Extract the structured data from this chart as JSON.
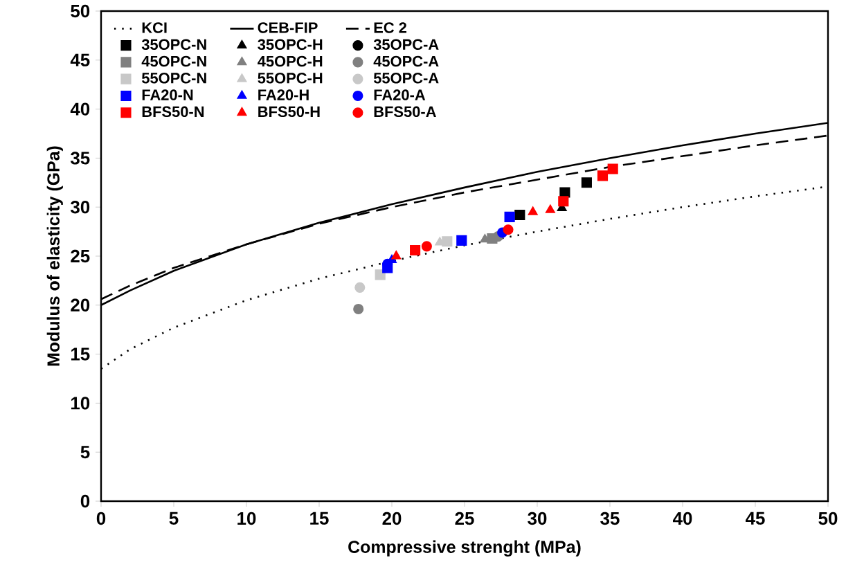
{
  "chart_data": {
    "type": "scatter",
    "xlabel": "Compressive strenght (MPa)",
    "ylabel": "Modulus of elasticity (GPa)",
    "xlim": [
      0,
      50
    ],
    "ylim": [
      0,
      50
    ],
    "xticks": [
      0,
      5,
      10,
      15,
      20,
      25,
      30,
      35,
      40,
      45,
      50
    ],
    "yticks": [
      0,
      5,
      10,
      15,
      20,
      25,
      30,
      35,
      40,
      45,
      50
    ],
    "legend": "top left",
    "series": [
      {
        "name": "KCI",
        "type": "line",
        "line_style": "dotted",
        "color": "#000000",
        "x": [
          0,
          2,
          5,
          10,
          15,
          20,
          25,
          30,
          35,
          40,
          45,
          50
        ],
        "values": [
          13.5,
          15.5,
          17.7,
          20.5,
          22.7,
          24.5,
          26.1,
          27.5,
          28.8,
          30.0,
          31.1,
          32.1
        ]
      },
      {
        "name": "CEB-FIP",
        "type": "line",
        "line_style": "solid",
        "color": "#000000",
        "x": [
          0,
          2,
          5,
          10,
          15,
          20,
          25,
          30,
          35,
          40,
          45,
          50
        ],
        "values": [
          20.0,
          21.5,
          23.5,
          26.2,
          28.4,
          30.3,
          32.0,
          33.6,
          35.0,
          36.3,
          37.5,
          38.6
        ]
      },
      {
        "name": "EC 2",
        "type": "line",
        "line_style": "dashed",
        "color": "#000000",
        "x": [
          0,
          2,
          5,
          10,
          15,
          20,
          25,
          30,
          35,
          40,
          45,
          50
        ],
        "values": [
          20.6,
          22.0,
          23.8,
          26.2,
          28.3,
          30.0,
          31.5,
          32.8,
          34.1,
          35.2,
          36.3,
          37.3
        ]
      },
      {
        "name": "35OPC-N",
        "type": "scatter",
        "marker": "square",
        "color": "#000000",
        "x": [
          28.8,
          31.9,
          33.4
        ],
        "values": [
          29.2,
          31.5,
          32.5
        ]
      },
      {
        "name": "35OPC-H",
        "type": "scatter",
        "marker": "triangle",
        "color": "#000000",
        "x": [
          31.7
        ],
        "values": [
          29.9
        ]
      },
      {
        "name": "35OPC-A",
        "type": "scatter",
        "marker": "circle",
        "color": "#000000"
      },
      {
        "name": "45OPC-N",
        "type": "scatter",
        "marker": "square",
        "color": "#808080",
        "x": [
          26.9
        ],
        "values": [
          26.8
        ]
      },
      {
        "name": "45OPC-H",
        "type": "scatter",
        "marker": "triangle",
        "color": "#808080",
        "x": [
          26.4
        ],
        "values": [
          26.7
        ]
      },
      {
        "name": "45OPC-A",
        "type": "scatter",
        "marker": "circle",
        "color": "#808080",
        "x": [
          17.7,
          27.3
        ],
        "values": [
          19.6,
          27.0
        ]
      },
      {
        "name": "55OPC-N",
        "type": "scatter",
        "marker": "square",
        "color": "#c8c8c8",
        "x": [
          19.2,
          23.8
        ],
        "values": [
          23.1,
          26.5
        ]
      },
      {
        "name": "55OPC-H",
        "type": "scatter",
        "marker": "triangle",
        "color": "#c8c8c8",
        "x": [
          23.3
        ],
        "values": [
          26.4
        ]
      },
      {
        "name": "55OPC-A",
        "type": "scatter",
        "marker": "circle",
        "color": "#c8c8c8",
        "x": [
          17.8
        ],
        "values": [
          21.8
        ]
      },
      {
        "name": "FA20-N",
        "type": "scatter",
        "marker": "square",
        "color": "#0000ff",
        "x": [
          19.7,
          24.8,
          28.1
        ],
        "values": [
          23.8,
          26.6,
          29.0
        ]
      },
      {
        "name": "FA20-H",
        "type": "scatter",
        "marker": "triangle",
        "color": "#0000ff",
        "x": [
          20.0
        ],
        "values": [
          24.6
        ]
      },
      {
        "name": "FA20-A",
        "type": "scatter",
        "marker": "circle",
        "color": "#0000ff",
        "x": [
          19.7,
          27.6
        ],
        "values": [
          24.2,
          27.4
        ]
      },
      {
        "name": "BFS50-N",
        "type": "scatter",
        "marker": "square",
        "color": "#ff0000",
        "x": [
          21.6,
          31.8,
          34.5,
          35.2
        ],
        "values": [
          25.6,
          30.6,
          33.2,
          33.9
        ]
      },
      {
        "name": "BFS50-H",
        "type": "scatter",
        "marker": "triangle",
        "color": "#ff0000",
        "x": [
          20.3,
          29.7,
          30.9
        ],
        "values": [
          25.0,
          29.5,
          29.7
        ]
      },
      {
        "name": "BFS50-A",
        "type": "scatter",
        "marker": "circle",
        "color": "#ff0000",
        "x": [
          22.4,
          28.0
        ],
        "values": [
          26.0,
          27.7
        ]
      }
    ]
  }
}
